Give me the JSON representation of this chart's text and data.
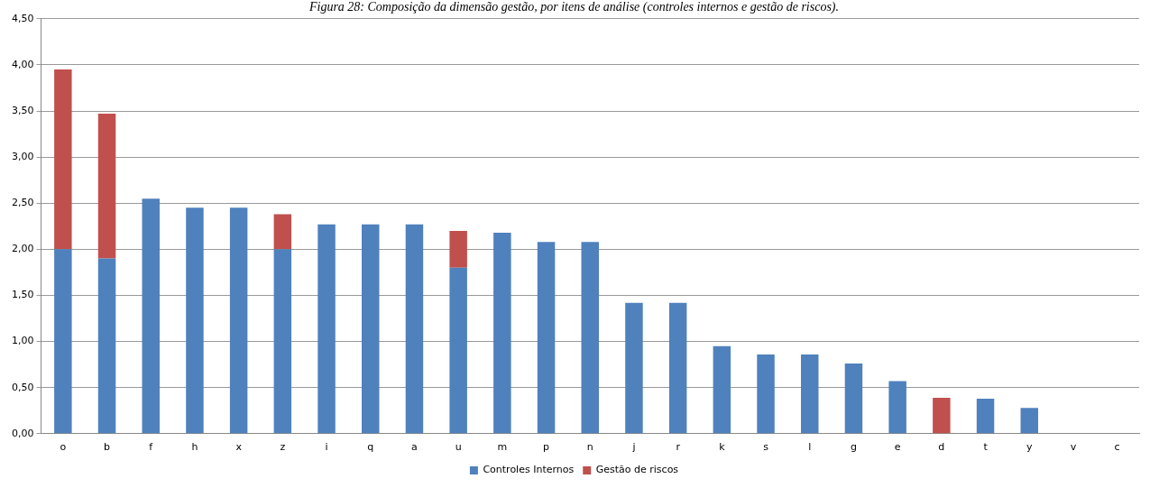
{
  "chart_data": {
    "type": "bar",
    "title": "Figura 28: Composição da dimensão gestão, por itens de análise (controles internos e gestão de riscos).",
    "categories": [
      "o",
      "b",
      "f",
      "h",
      "x",
      "z",
      "i",
      "q",
      "a",
      "u",
      "m",
      "p",
      "n",
      "j",
      "r",
      "k",
      "s",
      "l",
      "g",
      "e",
      "d",
      "t",
      "y",
      "v",
      "c"
    ],
    "series": [
      {
        "name": "Controles Internos",
        "color": "#4f81bd",
        "values": [
          2.0,
          1.9,
          2.55,
          2.45,
          2.45,
          2.0,
          2.27,
          2.27,
          2.27,
          1.8,
          2.18,
          2.08,
          2.08,
          1.42,
          1.42,
          0.95,
          0.86,
          0.86,
          0.76,
          0.57,
          0,
          0.38,
          0.28,
          0,
          0
        ]
      },
      {
        "name": "Gestão de riscos",
        "color": "#c0504d",
        "values": [
          1.95,
          1.57,
          0,
          0,
          0,
          0.38,
          0,
          0,
          0,
          0.4,
          0,
          0,
          0,
          0,
          0,
          0,
          0,
          0,
          0,
          0,
          0.39,
          0,
          0,
          0,
          0
        ]
      }
    ],
    "stacked": true,
    "ylim": [
      0,
      4.5
    ],
    "yticks": [
      {
        "value": 0,
        "label": "0,00"
      },
      {
        "value": 0.5,
        "label": "0,50"
      },
      {
        "value": 1,
        "label": "1,00"
      },
      {
        "value": 1.5,
        "label": "1,50"
      },
      {
        "value": 2,
        "label": "2,00"
      },
      {
        "value": 2.5,
        "label": "2,50"
      },
      {
        "value": 3,
        "label": "3,00"
      },
      {
        "value": 3.5,
        "label": "3,50"
      },
      {
        "value": 4,
        "label": "4,00"
      },
      {
        "value": 4.5,
        "label": "4,50"
      }
    ],
    "grid": "y",
    "legend": "bottom"
  }
}
